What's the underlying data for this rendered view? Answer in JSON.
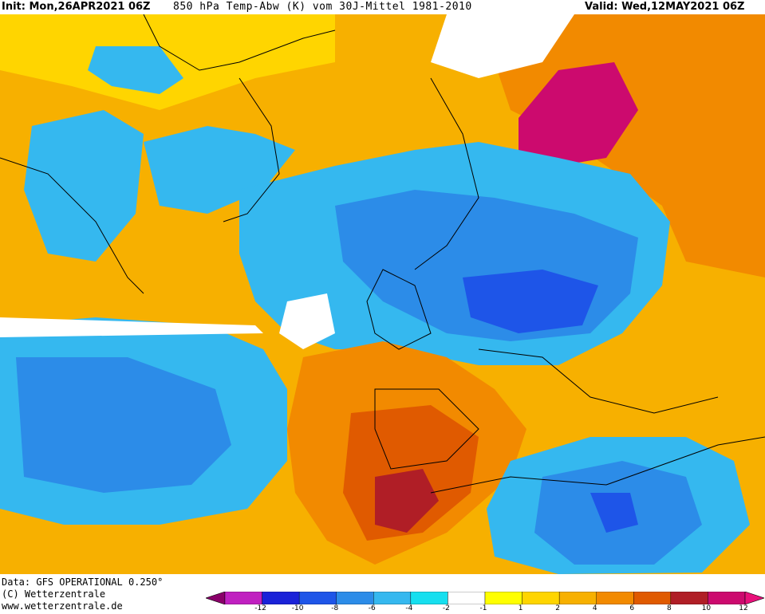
{
  "header": {
    "init": "Init: Mon,26APR2021 06Z",
    "title": "850 hPa Temp-Abw (K) vom 30J-Mittel 1981-2010",
    "valid": "Valid: Wed,12MAY2021 06Z"
  },
  "footer": {
    "data_source": "Data: GFS OPERATIONAL 0.250°",
    "copyright": "(C) Wetterzentrale",
    "website": "www.wetterzentrale.de"
  },
  "colorbar": {
    "labels": [
      "-12",
      "-10",
      "-8",
      "-6",
      "-4",
      "-2",
      "-1",
      "1",
      "2",
      "4",
      "6",
      "8",
      "10",
      "12"
    ],
    "colors": [
      "#c020c0",
      "#1a22d8",
      "#1e55e8",
      "#2c8ce8",
      "#35b8ef",
      "#16dfef",
      "#ffffff",
      "#ffff00",
      "#ffd500",
      "#f7b000",
      "#f28a00",
      "#e05a00",
      "#b01e26",
      "#cc0a6e"
    ],
    "min_color": "#8a006a",
    "max_color": "#e8107a"
  },
  "palette": {
    "deep_blue": "#1e55e8",
    "mid_blue": "#2c8ce8",
    "light_blue": "#35b8ef",
    "cyan": "#16dfef",
    "white": "#ffffff",
    "yellow": "#ffd500",
    "orange_light": "#f7b000",
    "orange": "#f28a00",
    "dark_orange": "#e05a00",
    "red": "#b01e26",
    "magenta": "#cc0a6e"
  }
}
